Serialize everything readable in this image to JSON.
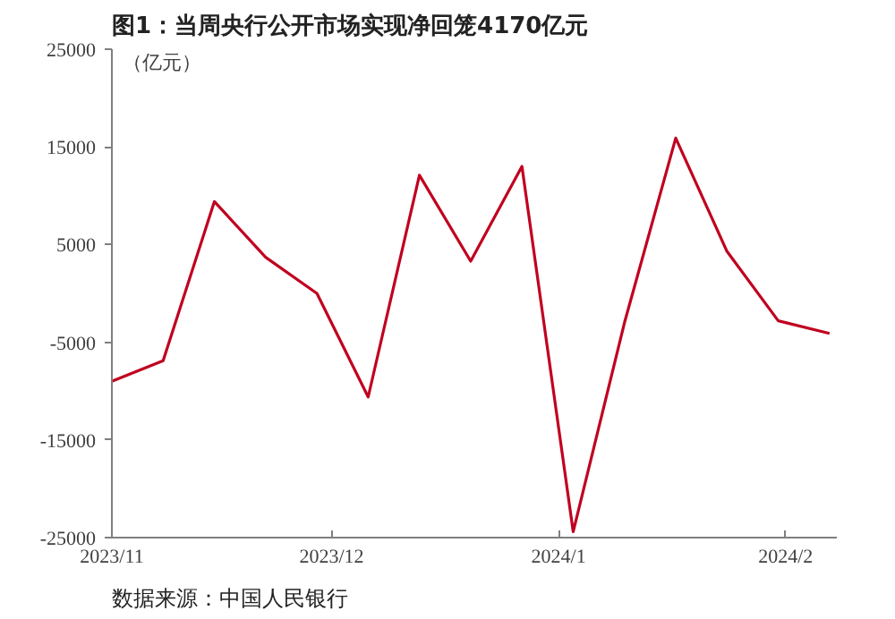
{
  "chart_data": {
    "type": "line",
    "title": "图1：当周央行公开市场实现净回笼4170亿元",
    "ylabel": "（亿元）",
    "x": [
      "2023-11-01",
      "2023-11-08",
      "2023-11-15",
      "2023-11-22",
      "2023-11-29",
      "2023-12-06",
      "2023-12-13",
      "2023-12-20",
      "2023-12-27",
      "2024-01-03",
      "2024-01-10",
      "2024-01-17",
      "2024-01-24",
      "2024-01-31",
      "2024-02-07"
    ],
    "series": [
      {
        "color": "#c0001f",
        "values": [
          -9000,
          -6900,
          9400,
          3700,
          0,
          -10600,
          12100,
          3300,
          13000,
          -24400,
          -3000,
          15900,
          4300,
          -2800,
          -4100
        ]
      }
    ],
    "xlim": [
      "2023-11-01",
      "2024-02-08"
    ],
    "xticks": [
      {
        "value": "2023-11-01",
        "label": "2023/11"
      },
      {
        "value": "2023-12-01",
        "label": "2023/12"
      },
      {
        "value": "2024-01-01",
        "label": "2024/1"
      },
      {
        "value": "2024-02-01",
        "label": "2024/2"
      }
    ],
    "ylim": [
      -25000,
      25000
    ],
    "yticks": [
      -25000,
      -15000,
      -5000,
      5000,
      15000,
      25000
    ],
    "grid": false,
    "marker": "none",
    "line_style": "solid",
    "annotations": [
      "数据来源：中国人民银行"
    ]
  }
}
